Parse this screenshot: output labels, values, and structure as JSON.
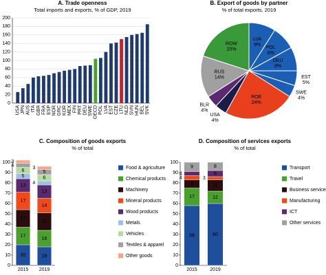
{
  "chart_data": [
    {
      "type": "bar",
      "title": "A. Trade openness",
      "subtitle": "Total imports and exports, % of GDP, 2019",
      "categories": [
        "USA",
        "JPN",
        "AUS",
        "ITA",
        "GBR",
        "FRA",
        "ESP",
        "NOR",
        "GRC",
        "KOR",
        "MEX",
        "FIN",
        "PRT",
        "DEU",
        "SWE",
        "OECD",
        "POL",
        "LVA",
        "EST",
        "CZE",
        "LTU",
        "NLD",
        "SVN",
        "HUN",
        "BEL",
        "SVK"
      ],
      "values": [
        26,
        35,
        45,
        60,
        63,
        64,
        66,
        70,
        73,
        76,
        78,
        80,
        87,
        88,
        89,
        104,
        106,
        120,
        140,
        142,
        150,
        155,
        160,
        162,
        165,
        185
      ],
      "colors": [
        "#1f3a6e",
        "#1f3a6e",
        "#1f3a6e",
        "#1f3a6e",
        "#1f3a6e",
        "#1f3a6e",
        "#1f3a6e",
        "#1f3a6e",
        "#1f3a6e",
        "#1f3a6e",
        "#1f3a6e",
        "#1f3a6e",
        "#1f3a6e",
        "#1f3a6e",
        "#1f3a6e",
        "#4aa02c",
        "#1f3a6e",
        "#1f3a6e",
        "#1f3a6e",
        "#1f3a6e",
        "#c0232b",
        "#1f3a6e",
        "#1f3a6e",
        "#1f3a6e",
        "#1f3a6e",
        "#1f3a6e"
      ],
      "ylim": [
        0,
        200
      ],
      "yticks": [
        0,
        20,
        40,
        60,
        80,
        100,
        120,
        140,
        160,
        180,
        200
      ],
      "grid": true
    },
    {
      "type": "pie",
      "title": "B. Export of goods by partner",
      "subtitle": "% of total exports, 2019",
      "categories": [
        "LVA",
        "POL",
        "DEU",
        "EST",
        "SWE",
        "ROE",
        "USA",
        "BLR",
        "RUS",
        "ROW"
      ],
      "values": [
        9,
        8,
        8,
        5,
        4,
        24,
        4,
        4,
        14,
        20
      ],
      "value_labels": [
        "9%",
        "8%",
        "8%",
        "5%",
        "4%",
        "24%",
        "4%",
        "4%",
        "14%",
        "20%"
      ],
      "colors": [
        "#1a5fb4",
        "#1a5fb4",
        "#1a5fb4",
        "#1a5fb4",
        "#1a5fb4",
        "#e8401c",
        "#1c1c4a",
        "#5b2a6e",
        "#a0a0a0",
        "#3a9a3a"
      ]
    },
    {
      "type": "stacked_bar",
      "title": "C. Composition of goods exports",
      "subtitle": "% of total",
      "categories": [
        "2015",
        "2019"
      ],
      "series": [
        {
          "name": "Food & agriculture",
          "color": "#1f4e9c",
          "values": [
            20,
            18
          ]
        },
        {
          "name": "Chemical products",
          "color": "#4aa02c",
          "values": [
            17,
            16
          ]
        },
        {
          "name": "Machinery",
          "color": "#2a0d0d",
          "values": [
            17,
            17
          ]
        },
        {
          "name": "Mineral products",
          "color": "#f04a1a",
          "values": [
            17,
            14
          ]
        },
        {
          "name": "Wood products",
          "color": "#5a2a6e",
          "values": [
            13,
            13
          ]
        },
        {
          "name": "Metals",
          "color": "#9ec0e6",
          "values": [
            5,
            4
          ]
        },
        {
          "name": "Vehicles",
          "color": "#b5dba0",
          "values": [
            6,
            6
          ]
        },
        {
          "name": "Textiles & apparel",
          "color": "#a0a0a0",
          "values": [
            4,
            5
          ]
        },
        {
          "name": "Other goods",
          "color": "#f4a58a",
          "values": [
            3,
            3
          ]
        }
      ],
      "ylim": [
        0,
        100
      ],
      "yticks": [
        0,
        10,
        20,
        30,
        40,
        50,
        60,
        70,
        80,
        90,
        100
      ]
    },
    {
      "type": "stacked_bar",
      "title": "D. Composition of services exports",
      "subtitle": "% of total",
      "categories": [
        "2015",
        "2019"
      ],
      "series": [
        {
          "name": "Transport",
          "color": "#1f4e9c",
          "values": [
            58,
            60
          ]
        },
        {
          "name": "Travel",
          "color": "#4aa02c",
          "values": [
            17,
            12
          ]
        },
        {
          "name": "Business services",
          "color": "#2a0d0d",
          "values": [
            8,
            11
          ]
        },
        {
          "name": "Manufacturing",
          "color": "#f04a1a",
          "values": [
            4,
            3
          ]
        },
        {
          "name": "ICT",
          "color": "#5a2a6e",
          "values": [
            4,
            6
          ]
        },
        {
          "name": "Other services",
          "color": "#a0a0a0",
          "values": [
            9,
            8
          ]
        }
      ],
      "ylim": [
        0,
        100
      ],
      "yticks": [
        0,
        10,
        20,
        30,
        40,
        50,
        60,
        70,
        80,
        90,
        100
      ]
    }
  ]
}
